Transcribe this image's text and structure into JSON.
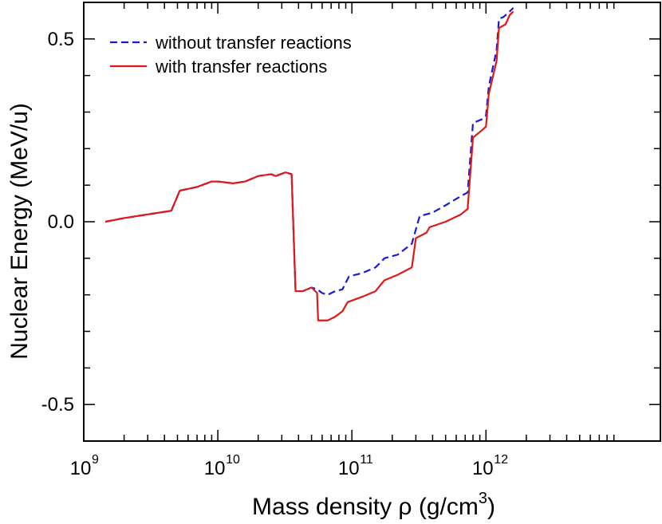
{
  "chart_data": {
    "type": "line",
    "xlabel": "Mass density ρ (g/cm",
    "xlabel_exponent": "3",
    "xlabel_suffix": ")",
    "ylabel": "Nuclear Energy (MeV/u)",
    "x_scale": "log",
    "xlim": [
      1000000000,
      20000000000000
    ],
    "ylim": [
      -0.6,
      0.6
    ],
    "y_ticks": [
      {
        "value": -0.5,
        "label": "-0.5"
      },
      {
        "value": 0.0,
        "label": "0.0"
      },
      {
        "value": 0.5,
        "label": "0.5"
      }
    ],
    "x_ticks": [
      {
        "value": 1000000000,
        "base": "10",
        "exp": "9"
      },
      {
        "value": 10000000000,
        "base": "10",
        "exp": "10"
      },
      {
        "value": 100000000000,
        "base": "10",
        "exp": "11"
      },
      {
        "value": 1000000000000,
        "base": "10",
        "exp": "12"
      }
    ],
    "legend_position": "top-left",
    "series": [
      {
        "name": "without transfer reactions",
        "color": "#1a1ad6",
        "dash": true,
        "points": [
          [
            1450000000.0,
            0.0
          ],
          [
            2000000000.0,
            0.01
          ],
          [
            3000000000.0,
            0.02
          ],
          [
            4500000000.0,
            0.03
          ],
          [
            5200000000.0,
            0.085
          ],
          [
            7000000000.0,
            0.095
          ],
          [
            9000000000.0,
            0.11
          ],
          [
            10000000000.0,
            0.11
          ],
          [
            13000000000.0,
            0.105
          ],
          [
            16000000000.0,
            0.11
          ],
          [
            20000000000.0,
            0.125
          ],
          [
            25000000000.0,
            0.13
          ],
          [
            27000000000.0,
            0.125
          ],
          [
            32000000000.0,
            0.135
          ],
          [
            35500000000.0,
            0.13
          ],
          [
            38000000000.0,
            -0.19
          ],
          [
            43000000000.0,
            -0.19
          ],
          [
            50000000000.0,
            -0.18
          ],
          [
            55000000000.0,
            -0.185
          ],
          [
            60000000000.0,
            -0.195
          ],
          [
            66000000000.0,
            -0.2
          ],
          [
            75000000000.0,
            -0.19
          ],
          [
            85000000000.0,
            -0.185
          ],
          [
            95000000000.0,
            -0.15
          ],
          [
            120000000000.0,
            -0.14
          ],
          [
            150000000000.0,
            -0.125
          ],
          [
            175000000000.0,
            -0.1
          ],
          [
            220000000000.0,
            -0.09
          ],
          [
            280000000000.0,
            -0.06
          ],
          [
            320000000000.0,
            0.015
          ],
          [
            400000000000.0,
            0.025
          ],
          [
            500000000000.0,
            0.045
          ],
          [
            650000000000.0,
            0.07
          ],
          [
            730000000000.0,
            0.08
          ],
          [
            800000000000.0,
            0.27
          ],
          [
            930000000000.0,
            0.28
          ],
          [
            1000000000000.0,
            0.29
          ],
          [
            1050000000000.0,
            0.37
          ],
          [
            1200000000000.0,
            0.47
          ],
          [
            1250000000000.0,
            0.555
          ],
          [
            1350000000000.0,
            0.56
          ],
          [
            1450000000000.0,
            0.57
          ],
          [
            1600000000000.0,
            0.585
          ]
        ]
      },
      {
        "name": "with transfer reactions",
        "color": "#e01818",
        "dash": false,
        "points": [
          [
            1450000000.0,
            0.0
          ],
          [
            2000000000.0,
            0.01
          ],
          [
            3000000000.0,
            0.02
          ],
          [
            4500000000.0,
            0.03
          ],
          [
            5200000000.0,
            0.085
          ],
          [
            7000000000.0,
            0.095
          ],
          [
            9000000000.0,
            0.11
          ],
          [
            10000000000.0,
            0.11
          ],
          [
            13000000000.0,
            0.105
          ],
          [
            16000000000.0,
            0.11
          ],
          [
            20000000000.0,
            0.125
          ],
          [
            25000000000.0,
            0.13
          ],
          [
            27000000000.0,
            0.125
          ],
          [
            32000000000.0,
            0.135
          ],
          [
            35500000000.0,
            0.13
          ],
          [
            38000000000.0,
            -0.19
          ],
          [
            43000000000.0,
            -0.19
          ],
          [
            50000000000.0,
            -0.18
          ],
          [
            55000000000.0,
            -0.195
          ],
          [
            56000000000.0,
            -0.27
          ],
          [
            60000000000.0,
            -0.27
          ],
          [
            66000000000.0,
            -0.27
          ],
          [
            75000000000.0,
            -0.26
          ],
          [
            85000000000.0,
            -0.245
          ],
          [
            93000000000.0,
            -0.22
          ],
          [
            120000000000.0,
            -0.205
          ],
          [
            150000000000.0,
            -0.19
          ],
          [
            175000000000.0,
            -0.16
          ],
          [
            220000000000.0,
            -0.145
          ],
          [
            280000000000.0,
            -0.125
          ],
          [
            300000000000.0,
            -0.045
          ],
          [
            360000000000.0,
            -0.03
          ],
          [
            380000000000.0,
            -0.015
          ],
          [
            500000000000.0,
            0.0
          ],
          [
            650000000000.0,
            0.02
          ],
          [
            730000000000.0,
            0.035
          ],
          [
            800000000000.0,
            0.23
          ],
          [
            930000000000.0,
            0.25
          ],
          [
            1000000000000.0,
            0.26
          ],
          [
            1050000000000.0,
            0.35
          ],
          [
            1200000000000.0,
            0.44
          ],
          [
            1250000000000.0,
            0.53
          ],
          [
            1400000000000.0,
            0.54
          ],
          [
            1500000000000.0,
            0.565
          ],
          [
            1600000000000.0,
            0.575
          ]
        ]
      }
    ]
  }
}
